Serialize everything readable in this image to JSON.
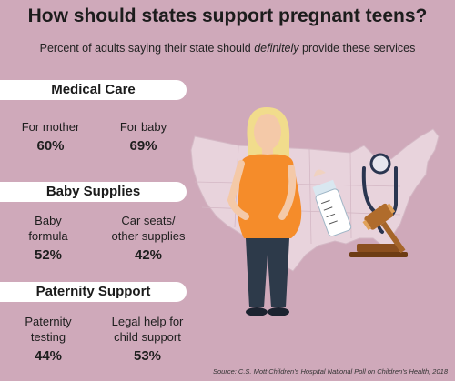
{
  "title": "How should states support pregnant teens?",
  "subtitle": {
    "before": "Percent of adults saying their state should ",
    "emphasis": "definitely",
    "after": " provide these services"
  },
  "chart_data": {
    "type": "table",
    "sections": [
      {
        "name": "Medical Care",
        "items": [
          {
            "label": "For mother",
            "value": 60,
            "display": "60%"
          },
          {
            "label": "For baby",
            "value": 69,
            "display": "69%"
          }
        ]
      },
      {
        "name": "Baby Supplies",
        "items": [
          {
            "label": "Baby formula",
            "value": 52,
            "display": "52%"
          },
          {
            "label": "Car seats/ other supplies",
            "value": 42,
            "display": "42%"
          }
        ]
      },
      {
        "name": "Paternity Support",
        "items": [
          {
            "label": "Paternity testing",
            "value": 44,
            "display": "44%"
          },
          {
            "label": "Legal help for child support",
            "value": 53,
            "display": "53%"
          }
        ]
      }
    ]
  },
  "source": "Source: C.S. Mott Children's Hospital National Poll on Children's Health, 2018",
  "colors": {
    "background": "#cfa9ba",
    "banner": "#ffffff",
    "map": "#e8d3dc",
    "dress": "#f58c2a",
    "pants": "#2d3a4a",
    "hair": "#f1dc8c",
    "skin": "#f4c9a8",
    "stethoscope": "#2a3550",
    "gavel": "#a5652a"
  },
  "icons": [
    "us-map-icon",
    "pregnant-woman-icon",
    "baby-bottle-icon",
    "stethoscope-icon",
    "gavel-icon"
  ]
}
